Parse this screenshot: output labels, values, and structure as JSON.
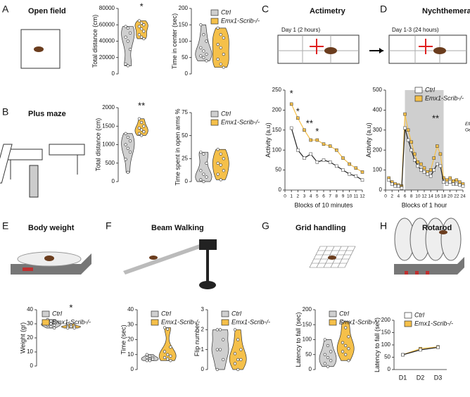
{
  "panels": [
    {
      "letter": "A",
      "title": "Open field"
    },
    {
      "letter": "B",
      "title": "Plus maze"
    },
    {
      "letter": "C",
      "title": "Actimetry",
      "caption": "Day 1 (2 hours)"
    },
    {
      "letter": "D",
      "title": "Nychthemeral cycle",
      "caption": "Day 1-3 (24 hours)"
    },
    {
      "letter": "E",
      "title": "Body weight"
    },
    {
      "letter": "F",
      "title": "Beam Walking"
    },
    {
      "letter": "G",
      "title": "Grid handling"
    },
    {
      "letter": "H",
      "title": "Rotarod"
    }
  ],
  "chart_data": [
    {
      "type": "violin",
      "y_label": "Total distance (cm)",
      "ylim": [
        0,
        80000
      ],
      "yticks": [
        0,
        20000,
        40000,
        60000,
        80000
      ],
      "annotations": [
        "*"
      ],
      "series": [
        {
          "name": "Ctrl",
          "color": "#cfcfcf",
          "values": [
            58000,
            56000,
            50000,
            45000,
            40000,
            30000,
            12000,
            10000
          ]
        },
        {
          "name": "Emx1-Scrib-/-",
          "color": "#f5c04a",
          "values": [
            65000,
            62000,
            60000,
            58000,
            55000,
            52000,
            48000,
            45000,
            43000
          ]
        }
      ]
    },
    {
      "type": "violin",
      "y_label": "Time in center (sec)",
      "ylim": [
        0,
        200
      ],
      "yticks": [
        0,
        50,
        100,
        150,
        200
      ],
      "legend": true,
      "series": [
        {
          "name": "Ctrl",
          "color": "#cfcfcf",
          "values": [
            150,
            120,
            100,
            80,
            70,
            60,
            55,
            50,
            40
          ]
        },
        {
          "name": "Emx1-Scrib-/-",
          "color": "#f5c04a",
          "values": [
            140,
            120,
            110,
            90,
            80,
            60,
            45,
            30,
            20
          ]
        }
      ]
    },
    {
      "type": "violin",
      "y_label": "Total distance (cm)",
      "ylim": [
        0,
        2000
      ],
      "yticks": [
        0,
        500,
        1000,
        1500,
        2000
      ],
      "annotations": [
        "**"
      ],
      "series": [
        {
          "name": "Ctrl",
          "color": "#cfcfcf",
          "values": [
            1300,
            1200,
            1100,
            1000,
            900,
            800,
            600,
            250
          ]
        },
        {
          "name": "Emx1-Scrib-/-",
          "color": "#f5c04a",
          "values": [
            1700,
            1600,
            1500,
            1450,
            1400,
            1350,
            1300,
            1250
          ]
        }
      ]
    },
    {
      "type": "violin",
      "y_label": "Time spent in open arms %",
      "ylim": [
        0,
        75
      ],
      "yticks": [
        0,
        25,
        50,
        75
      ],
      "legend": true,
      "series": [
        {
          "name": "Ctrl",
          "color": "#cfcfcf",
          "values": [
            32,
            30,
            20,
            12,
            8,
            5,
            2,
            0
          ]
        },
        {
          "name": "Emx1-Scrib-/-",
          "color": "#f5c04a",
          "values": [
            35,
            30,
            25,
            20,
            18,
            12,
            8,
            2
          ]
        }
      ]
    },
    {
      "type": "line",
      "y_label": "Activity (a.u)",
      "x_label": "Blocks of 10 minutes",
      "xlim": [
        0,
        12
      ],
      "xticks": [
        0,
        1,
        2,
        3,
        4,
        5,
        6,
        7,
        8,
        9,
        10,
        11,
        12
      ],
      "ylim": [
        0,
        250
      ],
      "yticks": [
        0,
        50,
        100,
        150,
        200,
        250
      ],
      "annotations": [
        "*",
        "*",
        "**",
        "*"
      ],
      "x": [
        1,
        2,
        3,
        4,
        5,
        6,
        7,
        8,
        9,
        10,
        11,
        12
      ],
      "series": [
        {
          "name": "Ctrl",
          "color": "#222222",
          "values": [
            155,
            100,
            80,
            90,
            70,
            75,
            70,
            60,
            50,
            40,
            35,
            25
          ]
        },
        {
          "name": "Emx1-Scrib-/-",
          "color": "#f5c04a",
          "values": [
            215,
            180,
            150,
            125,
            125,
            115,
            110,
            100,
            80,
            65,
            55,
            45
          ]
        }
      ]
    },
    {
      "type": "line",
      "y_label": "Activity (a.u)",
      "x_label": "Blocks of 1 hour",
      "xlim": [
        0,
        24
      ],
      "xticks": [
        0,
        2,
        4,
        6,
        8,
        10,
        12,
        14,
        16,
        18,
        20,
        22,
        24
      ],
      "ylim": [
        0,
        500
      ],
      "yticks": [
        0,
        100,
        200,
        300,
        400,
        500
      ],
      "shaded_range": [
        6,
        18
      ],
      "legend": true,
      "annotations": [
        "**",
        "Genotype",
        "Effect : *"
      ],
      "x": [
        1,
        2,
        3,
        4,
        5,
        6,
        7,
        8,
        9,
        10,
        11,
        12,
        13,
        14,
        15,
        16,
        17,
        18,
        19,
        20,
        21,
        22,
        23,
        24
      ],
      "series": [
        {
          "name": "Ctrl",
          "color": "#222222",
          "values": [
            50,
            30,
            20,
            20,
            10,
            310,
            250,
            200,
            150,
            120,
            100,
            90,
            80,
            70,
            100,
            130,
            120,
            40,
            30,
            40,
            30,
            30,
            25,
            20
          ]
        },
        {
          "name": "Emx1-Scrib-/-",
          "color": "#f5c04a",
          "values": [
            60,
            40,
            30,
            25,
            20,
            380,
            300,
            240,
            180,
            140,
            130,
            110,
            90,
            100,
            160,
            220,
            180,
            60,
            50,
            60,
            45,
            50,
            40,
            30
          ]
        }
      ]
    },
    {
      "type": "violin",
      "y_label": "Weight (gr)",
      "ylim": [
        0,
        40
      ],
      "yticks": [
        0,
        10,
        20,
        30,
        40
      ],
      "legend": true,
      "annotations": [
        "*"
      ],
      "series": [
        {
          "name": "Ctrl",
          "color": "#cfcfcf",
          "values": [
            33,
            32,
            31,
            30,
            30,
            29,
            29,
            28,
            27
          ]
        },
        {
          "name": "Emx1-Scrib-/-",
          "color": "#f5c04a",
          "values": [
            30,
            29,
            28,
            28,
            28,
            27,
            27
          ]
        }
      ]
    },
    {
      "type": "violin",
      "y_label": "Time (sec)",
      "ylim": [
        0,
        40
      ],
      "yticks": [
        0,
        10,
        20,
        30,
        40
      ],
      "legend": true,
      "series": [
        {
          "name": "Ctrl",
          "color": "#cfcfcf",
          "values": [
            10,
            9,
            8,
            8,
            7,
            7,
            6,
            6
          ]
        },
        {
          "name": "Emx1-Scrib-/-",
          "color": "#f5c04a",
          "values": [
            28,
            27,
            15,
            12,
            10,
            9,
            8,
            7,
            6
          ]
        }
      ]
    },
    {
      "type": "violin",
      "y_label": "Flip number",
      "ylim": [
        0,
        3
      ],
      "yticks": [
        0,
        1,
        2,
        3
      ],
      "legend": true,
      "series": [
        {
          "name": "Ctrl",
          "color": "#cfcfcf",
          "values": [
            2,
            2,
            1.5,
            1,
            1,
            0.5,
            0
          ]
        },
        {
          "name": "Emx1-Scrib-/-",
          "color": "#f5c04a",
          "values": [
            2,
            1.5,
            1,
            0.8,
            0.5,
            0.5,
            0.3,
            0
          ]
        }
      ]
    },
    {
      "type": "violin",
      "y_label": "Latency to fall (sec)",
      "ylim": [
        0,
        200
      ],
      "yticks": [
        0,
        50,
        100,
        150,
        200
      ],
      "legend": true,
      "series": [
        {
          "name": "Ctrl",
          "color": "#cfcfcf",
          "values": [
            100,
            80,
            60,
            50,
            40,
            30,
            20,
            10
          ]
        },
        {
          "name": "Emx1-Scrib-/-",
          "color": "#f5c04a",
          "values": [
            160,
            140,
            110,
            90,
            80,
            70,
            60,
            50,
            30
          ]
        }
      ]
    },
    {
      "type": "line",
      "y_label": "Latency to fall (sec)",
      "categories": [
        "D1",
        "D2",
        "D3"
      ],
      "ylim": [
        0,
        200
      ],
      "yticks": [
        0,
        50,
        100,
        150,
        200
      ],
      "legend": true,
      "series": [
        {
          "name": "Ctrl",
          "color": "#222222",
          "values": [
            60,
            80,
            90
          ]
        },
        {
          "name": "Emx1-Scrib-/-",
          "color": "#f5c04a",
          "values": [
            60,
            85,
            92
          ]
        }
      ]
    }
  ]
}
